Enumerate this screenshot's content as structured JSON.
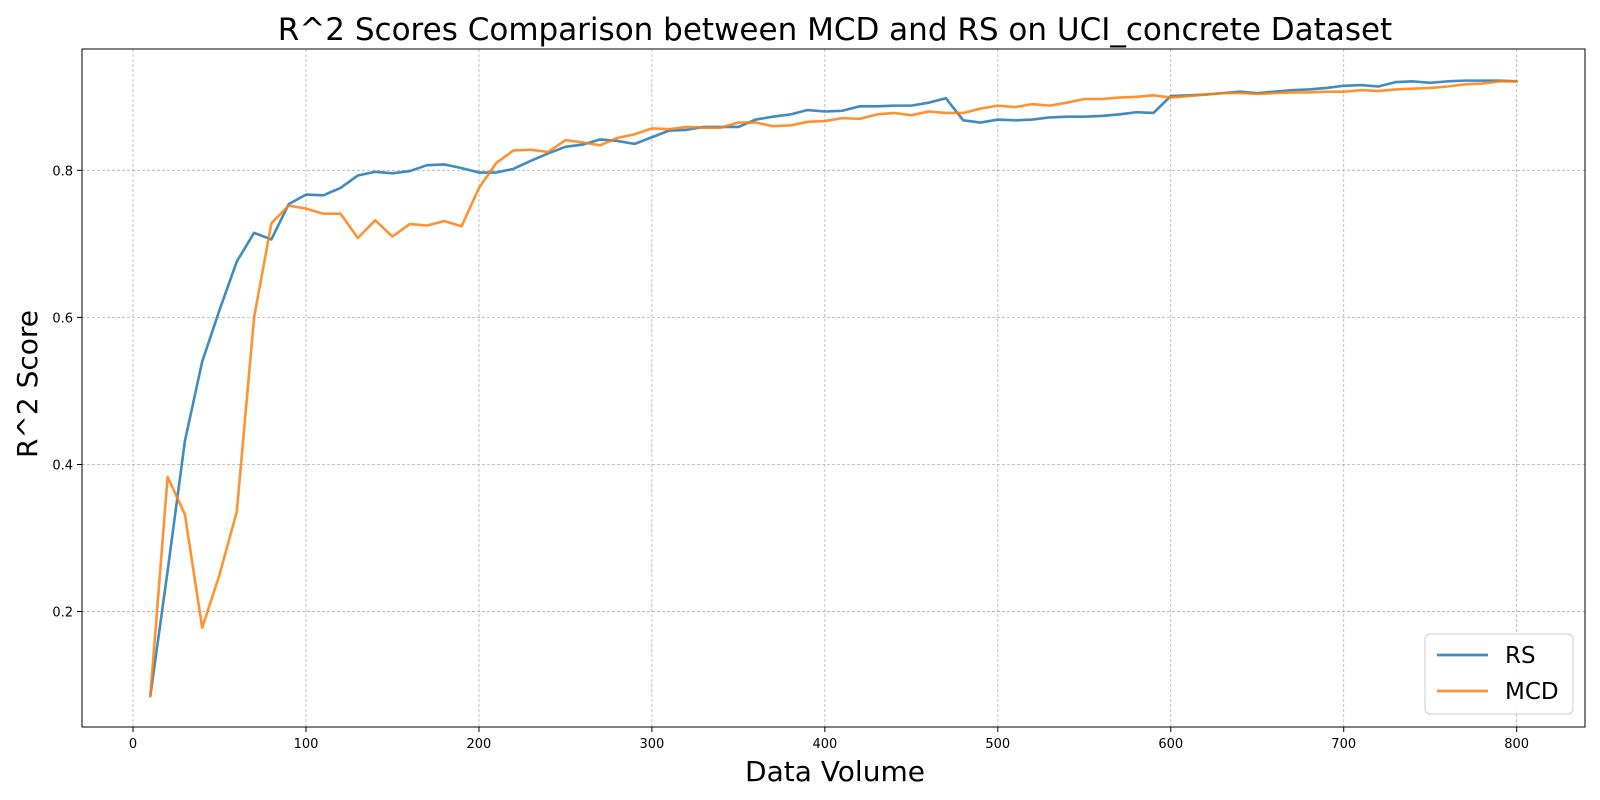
{
  "chart_data": {
    "type": "line",
    "title": "R^2 Scores Comparison between MCD and RS on UCI_concrete Dataset",
    "xlabel": "Data Volume",
    "ylabel": "R^2 Score",
    "xlim": [
      -29.5,
      839.5
    ],
    "ylim": [
      0.043,
      0.965
    ],
    "xticks": [
      0,
      100,
      200,
      300,
      400,
      500,
      600,
      700,
      800
    ],
    "yticks": [
      0.2,
      0.4,
      0.6,
      0.8
    ],
    "grid": true,
    "legend_position": "lower right",
    "x": [
      10,
      20,
      30,
      40,
      50,
      60,
      70,
      80,
      90,
      100,
      110,
      120,
      130,
      140,
      150,
      160,
      170,
      180,
      190,
      200,
      210,
      220,
      230,
      240,
      250,
      260,
      270,
      280,
      290,
      300,
      310,
      320,
      330,
      340,
      350,
      360,
      370,
      380,
      390,
      400,
      410,
      420,
      430,
      440,
      450,
      460,
      470,
      480,
      490,
      500,
      510,
      520,
      530,
      540,
      550,
      560,
      570,
      580,
      590,
      600,
      610,
      620,
      630,
      640,
      650,
      660,
      670,
      680,
      690,
      700,
      710,
      720,
      730,
      740,
      750,
      760,
      770,
      780,
      790,
      800
    ],
    "series": [
      {
        "name": "RS",
        "color": "#1f77b4",
        "values": [
          0.085,
          0.255,
          0.432,
          0.54,
          0.61,
          0.676,
          0.715,
          0.706,
          0.754,
          0.767,
          0.766,
          0.776,
          0.793,
          0.798,
          0.796,
          0.799,
          0.807,
          0.808,
          0.803,
          0.797,
          0.797,
          0.802,
          0.813,
          0.823,
          0.832,
          0.835,
          0.842,
          0.84,
          0.836,
          0.845,
          0.854,
          0.855,
          0.859,
          0.859,
          0.859,
          0.869,
          0.873,
          0.876,
          0.882,
          0.88,
          0.881,
          0.887,
          0.887,
          0.888,
          0.888,
          0.892,
          0.898,
          0.868,
          0.865,
          0.869,
          0.868,
          0.869,
          0.872,
          0.873,
          0.873,
          0.874,
          0.876,
          0.879,
          0.878,
          0.901,
          0.902,
          0.903,
          0.905,
          0.907,
          0.905,
          0.907,
          0.909,
          0.91,
          0.912,
          0.915,
          0.916,
          0.914,
          0.92,
          0.921,
          0.919,
          0.921,
          0.922,
          0.922,
          0.922,
          0.921
        ]
      },
      {
        "name": "MCD",
        "color": "#ff7f0e",
        "values": [
          0.085,
          0.383,
          0.332,
          0.178,
          0.25,
          0.336,
          0.6,
          0.728,
          0.752,
          0.748,
          0.741,
          0.741,
          0.708,
          0.732,
          0.71,
          0.727,
          0.725,
          0.731,
          0.724,
          0.776,
          0.81,
          0.827,
          0.828,
          0.825,
          0.841,
          0.838,
          0.834,
          0.844,
          0.849,
          0.857,
          0.856,
          0.859,
          0.858,
          0.858,
          0.865,
          0.865,
          0.86,
          0.861,
          0.866,
          0.867,
          0.871,
          0.87,
          0.876,
          0.878,
          0.875,
          0.88,
          0.878,
          0.878,
          0.884,
          0.888,
          0.886,
          0.89,
          0.888,
          0.892,
          0.897,
          0.897,
          0.899,
          0.9,
          0.902,
          0.899,
          0.901,
          0.903,
          0.905,
          0.905,
          0.904,
          0.905,
          0.906,
          0.906,
          0.907,
          0.907,
          0.909,
          0.908,
          0.91,
          0.911,
          0.912,
          0.914,
          0.917,
          0.918,
          0.921,
          0.921
        ]
      }
    ]
  }
}
